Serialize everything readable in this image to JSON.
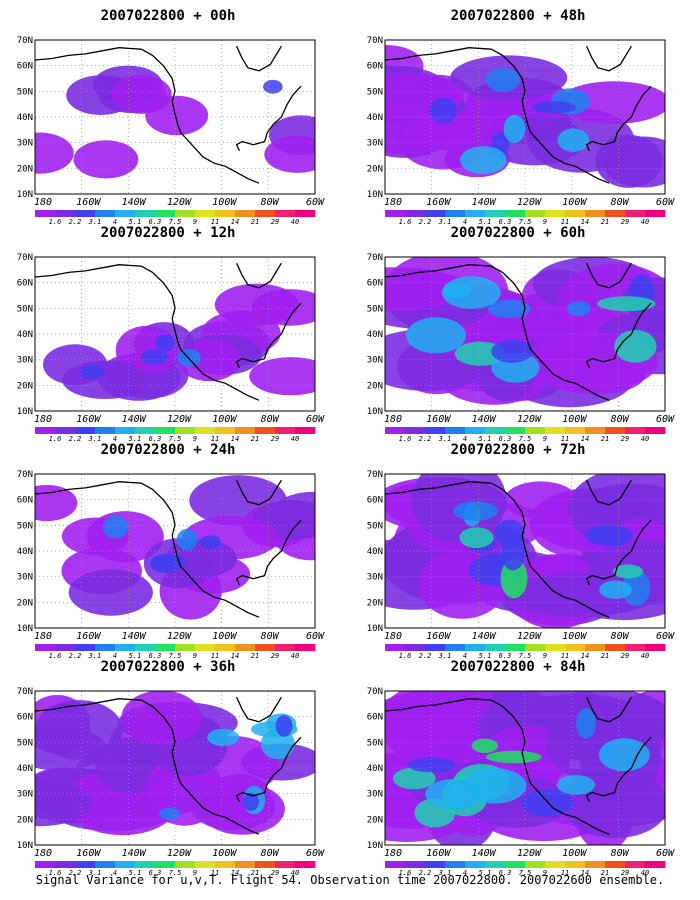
{
  "panels": [
    {
      "title": "2007022800 + 00h",
      "fill": 0.1
    },
    {
      "title": "2007022800 + 48h",
      "fill": 0.55
    },
    {
      "title": "2007022800 + 12h",
      "fill": 0.25
    },
    {
      "title": "2007022800 + 60h",
      "fill": 0.8
    },
    {
      "title": "2007022800 + 24h",
      "fill": 0.35
    },
    {
      "title": "2007022800 + 72h",
      "fill": 0.88
    },
    {
      "title": "2007022800 + 36h",
      "fill": 0.6
    },
    {
      "title": "2007022800 + 84h",
      "fill": 0.95
    }
  ],
  "y_labels": [
    "70N",
    "60N",
    "50N",
    "40N",
    "30N",
    "20N",
    "10N"
  ],
  "x_labels": [
    "180",
    "160W",
    "140W",
    "120W",
    "100W",
    "80W",
    "60W"
  ],
  "colorbar": {
    "labels": [
      "1.6",
      "2.2",
      "3.1",
      "4",
      "5.1",
      "6.3",
      "7.5",
      "9",
      "11",
      "14",
      "21",
      "29",
      "40"
    ],
    "colors": [
      "#a020f0",
      "#7b2ce0",
      "#4040f0",
      "#2080f0",
      "#20b0f0",
      "#20d0b0",
      "#20e060",
      "#a0e020",
      "#e0e020",
      "#f0c020",
      "#f09020",
      "#f05020",
      "#f02070",
      "#f00080"
    ]
  },
  "caption": "Signal Variance for u,v,T. Flight 54. Observation time 2007022800. 2007022600 ensemble."
}
